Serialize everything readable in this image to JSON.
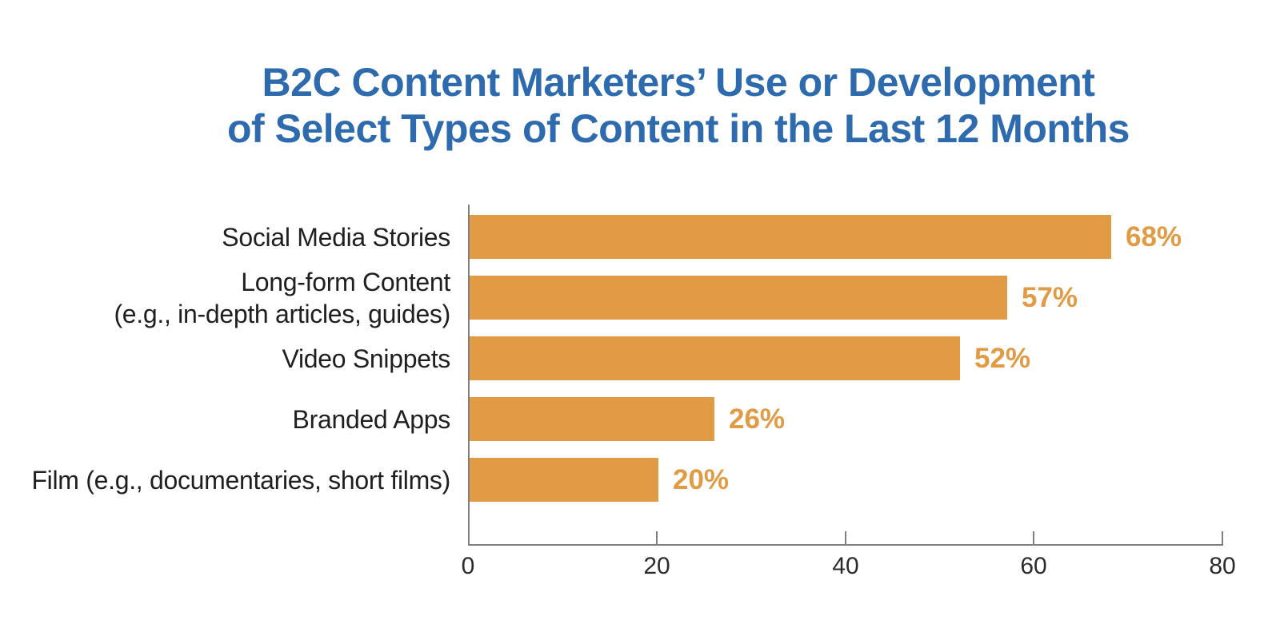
{
  "title": "B2C Content Marketers’ Use or Development\nof Select Types of Content in the Last 12 Months",
  "colors": {
    "bar": "#E09B44",
    "title": "#2E6BAE",
    "axis": "#7F7F7F",
    "category_label": "#1F1F1F",
    "tick_label": "#2B2B2B"
  },
  "chart_data": {
    "type": "bar",
    "orientation": "horizontal",
    "title": "B2C Content Marketers’ Use or Development of Select Types of Content in the Last 12 Months",
    "categories": [
      "Social Media Stories",
      "Long-form Content\n(e.g., in-depth articles, guides)",
      "Video Snippets",
      "Branded Apps",
      "Film (e.g., documentaries, short films)"
    ],
    "values": [
      68,
      57,
      52,
      26,
      20
    ],
    "value_labels": [
      "68%",
      "57%",
      "52%",
      "26%",
      "20%"
    ],
    "xlabel": "",
    "ylabel": "",
    "xlim": [
      0,
      80
    ],
    "x_ticks": [
      0,
      20,
      40,
      60,
      80
    ],
    "grid": false,
    "legend": false
  }
}
